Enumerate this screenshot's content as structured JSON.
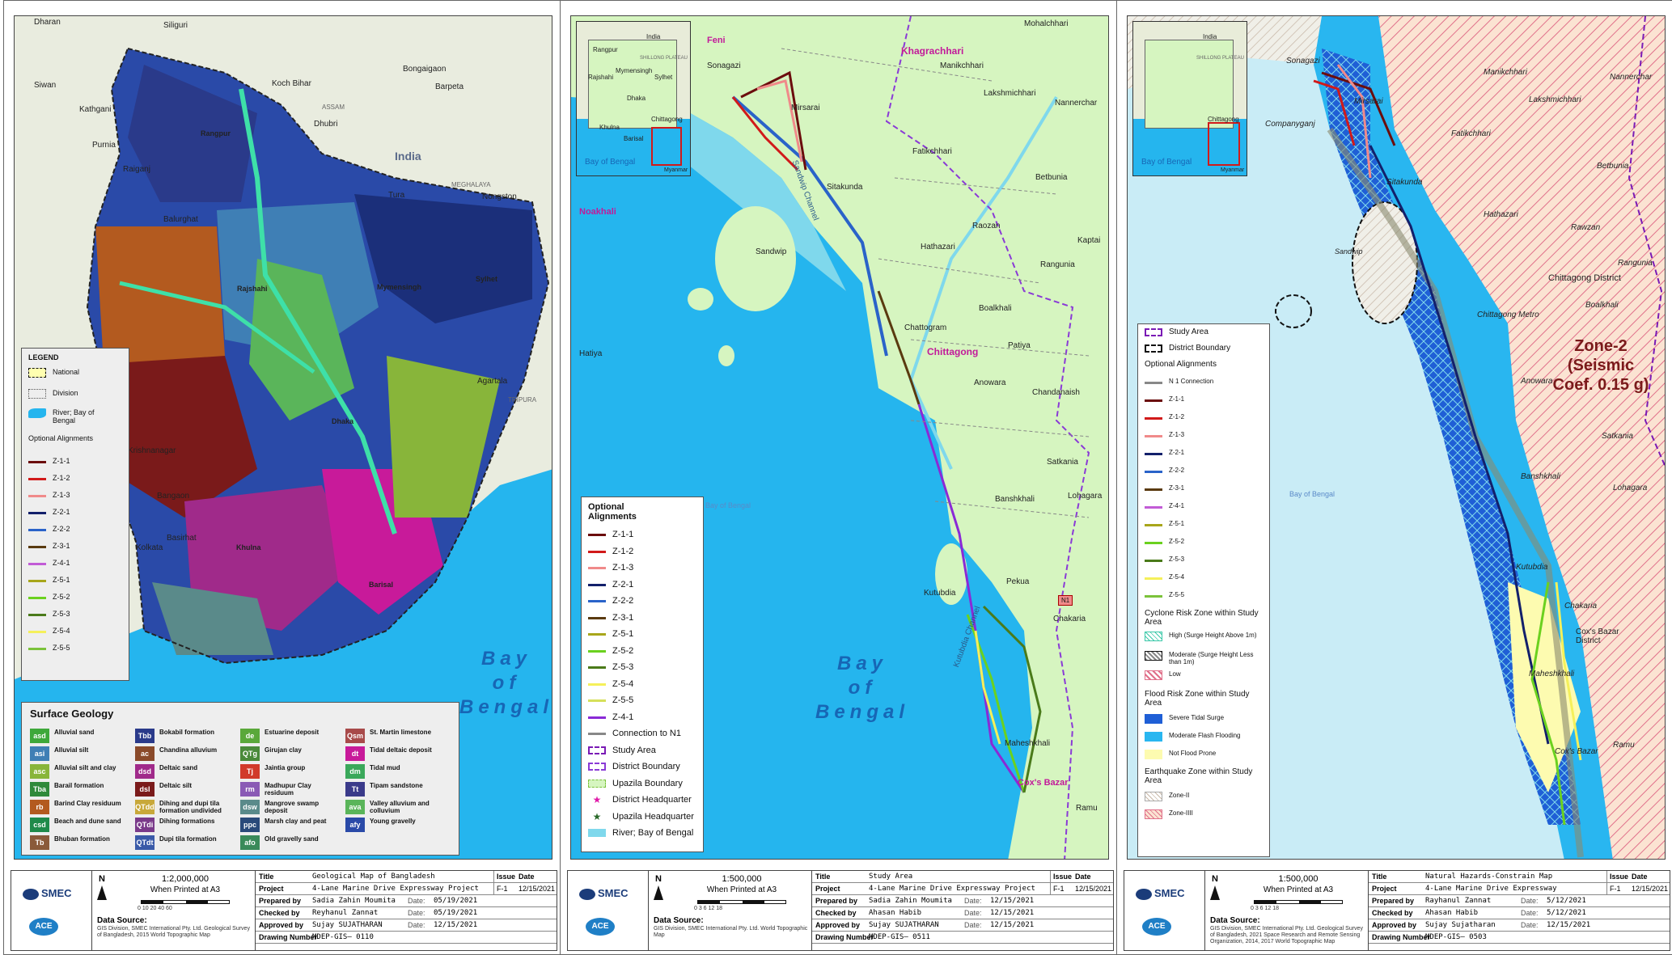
{
  "sheets": [
    {
      "map_title": "Geological Map of Bangladesh",
      "country_label": "India",
      "places": [
        "Dharan",
        "Siliguri",
        "Bongaigaon",
        "Koch Bihar",
        "Barpeta",
        "Dhubri",
        "ASSAM",
        "Rangpur",
        "Rajshahi",
        "Mymensingh",
        "Sylhet",
        "Dhaka",
        "Khulna",
        "Barisal",
        "Kolkata",
        "Agartala",
        "TRIPURA",
        "MEGHALAYA",
        "Nongston",
        "Tura",
        "Balurghat",
        "Raiganj",
        "Krishnanagar",
        "Bangaon",
        "Basirhat",
        "Siwan",
        "Kathgani",
        "Purnia"
      ],
      "bay": [
        "Bay",
        "of",
        "Bengal"
      ],
      "legend": {
        "title": "LEGEND",
        "items": [
          "National",
          "Division",
          "River; Bay of Bengal"
        ],
        "alignments_title": "Optional Alignments",
        "alignments": [
          {
            "name": "Z-1-1",
            "color": "#6b0d0d"
          },
          {
            "name": "Z-1-2",
            "color": "#d11a1a"
          },
          {
            "name": "Z-1-3",
            "color": "#f08a8a"
          },
          {
            "name": "Z-2-1",
            "color": "#13206b"
          },
          {
            "name": "Z-2-2",
            "color": "#2a63c9"
          },
          {
            "name": "Z-3-1",
            "color": "#5a3a10"
          },
          {
            "name": "Z-4-1",
            "color": "#c25bd6"
          },
          {
            "name": "Z-5-1",
            "color": "#a8a61a"
          },
          {
            "name": "Z-5-2",
            "color": "#6bd11f"
          },
          {
            "name": "Z-5-3",
            "color": "#4a7a1a"
          },
          {
            "name": "Z-5-4",
            "color": "#f5f05a"
          },
          {
            "name": "Z-5-5",
            "color": "#7bc23a"
          }
        ]
      },
      "geology": {
        "title": "Surface Geology",
        "items": [
          {
            "code": "asd",
            "name": "Alluvial sand",
            "color": "#3ea83a"
          },
          {
            "code": "asi",
            "name": "Alluvial silt",
            "color": "#3f7fb5"
          },
          {
            "code": "asc",
            "name": "Alluvial silt and clay",
            "color": "#88b53a"
          },
          {
            "code": "Tba",
            "name": "Barail formation",
            "color": "#2f8a3a"
          },
          {
            "code": "rb",
            "name": "Barind Clay residuum",
            "color": "#b35a1f"
          },
          {
            "code": "csd",
            "name": "Beach and dune sand",
            "color": "#1f8a4a"
          },
          {
            "code": "Tb",
            "name": "Bhuban formation",
            "color": "#8a5a3a"
          },
          {
            "code": "Tbb",
            "name": "Bokabil formation",
            "color": "#2a3a8a"
          },
          {
            "code": "ac",
            "name": "Chandina alluvium",
            "color": "#8a4a2a"
          },
          {
            "code": "dsd",
            "name": "Deltaic sand",
            "color": "#a02a8a"
          },
          {
            "code": "dsl",
            "name": "Deltaic silt",
            "color": "#7a1a1a"
          },
          {
            "code": "QTdd",
            "name": "Dihing and dupi tila formation undivided",
            "color": "#c8a83a"
          },
          {
            "code": "QTdi",
            "name": "Dihing formations",
            "color": "#7a3a8a"
          },
          {
            "code": "QTdt",
            "name": "Dupi tila formation",
            "color": "#3a5aa8"
          },
          {
            "code": "de",
            "name": "Estuarine deposit",
            "color": "#5aa83a"
          },
          {
            "code": "QTg",
            "name": "Girujan clay",
            "color": "#4a8a3a"
          },
          {
            "code": "Tj",
            "name": "Jaintia group",
            "color": "#d13a2a"
          },
          {
            "code": "rm",
            "name": "Madhupur Clay residuum",
            "color": "#8a5ab5"
          },
          {
            "code": "dsw",
            "name": "Mangrove swamp deposit",
            "color": "#5a8a8a"
          },
          {
            "code": "ppc",
            "name": "Marsh clay and peat",
            "color": "#2a4a7a"
          },
          {
            "code": "afo",
            "name": "Old gravelly sand",
            "color": "#3a8a5a"
          },
          {
            "code": "Qsm",
            "name": "St. Martin limestone",
            "color": "#a84a4a"
          },
          {
            "code": "dt",
            "name": "Tidal deltaic deposit",
            "color": "#c81a9a"
          },
          {
            "code": "dm",
            "name": "Tidal mud",
            "color": "#3aa85a"
          },
          {
            "code": "Tt",
            "name": "Tipam sandstone",
            "color": "#3a3a8a"
          },
          {
            "code": "ava",
            "name": "Valley alluvium and colluvium",
            "color": "#5ab55a"
          },
          {
            "code": "afy",
            "name": "Young gravelly",
            "color": "#2a4aa8"
          }
        ]
      },
      "titleblock": {
        "scale": "1:2,000,000",
        "printed": "When Printed at A3",
        "ticks": "0  10  20      40      60",
        "source_label": "Data Source:",
        "source": "GIS Division, SMEC International Pty. Ltd. Geological Survey of Bangladesh, 2015 World Topographic Map",
        "title_k": "Title",
        "title_v": "Geological Map of Bangladesh",
        "project_k": "Project",
        "project_v": "4-Lane Marine Drive Expressway Project",
        "prepared_k": "Prepared by",
        "prepared_v": "Sadia Zahin Moumita",
        "prepared_date": "05/19/2021",
        "checked_k": "Checked by",
        "checked_v": "Reyhanul Zannat",
        "checked_date": "05/19/2021",
        "approved_k": "Approved by",
        "approved_v": "Sujay SUJATHARAN",
        "approved_date": "12/15/2021",
        "drawing_k": "Drawing Number",
        "drawing_v": "MDEP-GIS– 0110",
        "issue_k": "Issue",
        "issue_v": "F-1",
        "date_k": "Date",
        "date_v": "12/15/2021"
      }
    },
    {
      "places": [
        "Feni",
        "Khagrachhari",
        "Mohalchhari",
        "Manikchhari",
        "Lakshmichhari",
        "Nannerchar",
        "Sonagazi",
        "Mirsarai",
        "Noakhali",
        "Fatikchhari",
        "Sitakunda",
        "Betbunia",
        "Raozan",
        "Hathazari",
        "Rangunia",
        "Kaptai",
        "Sandwip",
        "Hatiya",
        "Chattogram",
        "Chittagong",
        "Boalkhali",
        "Patiya",
        "Anowara",
        "Chandanaish",
        "Satkania",
        "Banshkhali",
        "Lohagara",
        "Pekua",
        "Kutubdia",
        "Chakaria",
        "Maheshkhali",
        "Cox's Bazar",
        "Ramu",
        "Sandwip Channel",
        "Kutubdia Channel",
        "Bay of Bengal",
        "N1"
      ],
      "inset": [
        "Rangpur",
        "Rajshahi",
        "Mymensingh",
        "Sylhet",
        "India",
        "Dhaka",
        "Khulna",
        "Barisal",
        "Chittagong",
        "Bay of Bengal",
        "Myanmar",
        "SHILLONG PLATEAU"
      ],
      "bay": [
        "Bay",
        "of",
        "Bengal"
      ],
      "legend": {
        "title": "Optional Alignments",
        "items": [
          {
            "name": "Z-1-1",
            "color": "#6b0d0d"
          },
          {
            "name": "Z-1-2",
            "color": "#d11a1a"
          },
          {
            "name": "Z-1-3",
            "color": "#f08a8a"
          },
          {
            "name": "Z-2-1",
            "color": "#13206b"
          },
          {
            "name": "Z-2-2",
            "color": "#2a63c9"
          },
          {
            "name": "Z-3-1",
            "color": "#5a3a10"
          },
          {
            "name": "Z-5-1",
            "color": "#a8a61a"
          },
          {
            "name": "Z-5-2",
            "color": "#6bd11f"
          },
          {
            "name": "Z-5-3",
            "color": "#4a7a1a"
          },
          {
            "name": "Z-5-4",
            "color": "#f5f05a"
          },
          {
            "name": "Z-5-5",
            "color": "#d6e05a"
          },
          {
            "name": "Z-4-1",
            "color": "#8a2ad6"
          },
          {
            "name": "Connection to N1",
            "color": "#888888"
          },
          {
            "name": "Study Area",
            "color": "#7a1ab5"
          },
          {
            "name": "District Boundary",
            "color": "#8a3ad6"
          },
          {
            "name": "Upazila Boundary",
            "color": "#7ac23a"
          },
          {
            "name": "District Headquarter",
            "color": "#e01aa8"
          },
          {
            "name": "Upazila Headquarter",
            "color": "#2a6a2a"
          },
          {
            "name": "River; Bay of Bengal",
            "color": "#7fd8ec"
          }
        ]
      },
      "titleblock": {
        "scale": "1:500,000",
        "printed": "When Printed at A3",
        "ticks": "0   3   6      12      18",
        "source_label": "Data Source:",
        "source": "GIS Division, SMEC International Pty. Ltd. World Topographic Map",
        "title_k": "Title",
        "title_v": "Study Area",
        "project_k": "Project",
        "project_v": "4-Lane Marine Drive Expressway Project",
        "prepared_k": "Prepared by",
        "prepared_v": "Sadia Zahin Moumita",
        "prepared_date": "12/15/2021",
        "checked_k": "Checked by",
        "checked_v": "Ahasan Habib",
        "checked_date": "12/15/2021",
        "approved_k": "Approved by",
        "approved_v": "Sujay SUJATHARAN",
        "approved_date": "12/15/2021",
        "drawing_k": "Drawing Number",
        "drawing_v": "MDEP-GIS– 0511",
        "issue_k": "Issue",
        "issue_v": "F-1",
        "date_k": "Date",
        "date_v": "12/15/2021"
      }
    },
    {
      "places": [
        "Sonagazi",
        "Companyganj",
        "Mirsarai",
        "Manikchhari",
        "Lakshmichhari",
        "Nannerchar",
        "Fatikchhari",
        "Sitakunda",
        "Betbunia",
        "Hathazari",
        "Rawzan",
        "Rangunia",
        "Chittagong District",
        "Boalkhali",
        "Chittagong Metro",
        "Anowara",
        "Banshkhali",
        "Satkania",
        "Lohagara",
        "Kutubdia",
        "Chakaria",
        "Maheshkhali",
        "Cox's Bazar District",
        "Cox's Bazar",
        "Ramu",
        "Sandwip",
        "Bay of Bengal"
      ],
      "zone_label": [
        "Zone-2",
        "(Seismic",
        "Coef. 0.15 g)"
      ],
      "legend": {
        "items": [
          "Study Area",
          "District Boundary"
        ],
        "alignments_title": "Optional Alignments",
        "alignments": [
          {
            "name": "N 1 Connection",
            "color": "#888888"
          },
          {
            "name": "Z-1-1",
            "color": "#6b0d0d"
          },
          {
            "name": "Z-1-2",
            "color": "#d11a1a"
          },
          {
            "name": "Z-1-3",
            "color": "#f08a8a"
          },
          {
            "name": "Z-2-1",
            "color": "#13206b"
          },
          {
            "name": "Z-2-2",
            "color": "#2a63c9"
          },
          {
            "name": "Z-3-1",
            "color": "#5a3a10"
          },
          {
            "name": "Z-4-1",
            "color": "#c25bd6"
          },
          {
            "name": "Z-5-1",
            "color": "#a8a61a"
          },
          {
            "name": "Z-5-2",
            "color": "#6bd11f"
          },
          {
            "name": "Z-5-3",
            "color": "#4a7a1a"
          },
          {
            "name": "Z-5-4",
            "color": "#f5f05a"
          },
          {
            "name": "Z-5-5",
            "color": "#7bc23a"
          }
        ],
        "cyclone_title": "Cyclone Risk Zone within Study Area",
        "cyclone": [
          "High (Surge Height Above 1m)",
          "Moderate (Surge Height Less than 1m)",
          "Low"
        ],
        "flood_title": "Flood Risk Zone within Study Area",
        "flood": [
          {
            "name": "Severe Tidal Surge",
            "color": "#1f5fd6"
          },
          {
            "name": "Moderate Flash Flooding",
            "color": "#29b6f0"
          },
          {
            "name": "Not Flood Prone",
            "color": "#fdfbb0"
          }
        ],
        "quake_title": "Earthquake Zone within Study Area",
        "quake": [
          "Zone-II",
          "Zone-IIII"
        ]
      },
      "titleblock": {
        "scale": "1:500,000",
        "printed": "When Printed at A3",
        "ticks": "0   3   6      12      18",
        "source_label": "Data Source:",
        "source": "GIS Division, SMEC International Pty. Ltd. Geological Survey of Bangladesh, 2021 Space Research and Remote Sensing Organization, 2014, 2017 World Topographic Map",
        "title_k": "Title",
        "title_v": "Natural Hazards-Constrain Map",
        "project_k": "Project",
        "project_v": "4-Lane Marine Drive Expressway",
        "prepared_k": "Prepared by",
        "prepared_v": "Rayhanul Zannat",
        "prepared_date": "5/12/2021",
        "checked_k": "Checked by",
        "checked_v": "Ahasan Habib",
        "checked_date": "5/12/2021",
        "approved_k": "Approved by",
        "approved_v": "Sujay Sujatharan",
        "approved_date": "12/15/2021",
        "drawing_k": "Drawing Number",
        "drawing_v": "MDEP-GIS– 0503",
        "issue_k": "Issue",
        "issue_v": "F-1",
        "date_k": "Date",
        "date_v": "12/15/2021"
      }
    }
  ],
  "common": {
    "date_label": "Date:",
    "smec": "SMEC",
    "ace": "ACE",
    "north": "N"
  },
  "colors": {
    "sea": "#25b5ee",
    "land": "#e8ecd9",
    "study_land": "#d6f5c0",
    "river": "#7fd8ec"
  }
}
